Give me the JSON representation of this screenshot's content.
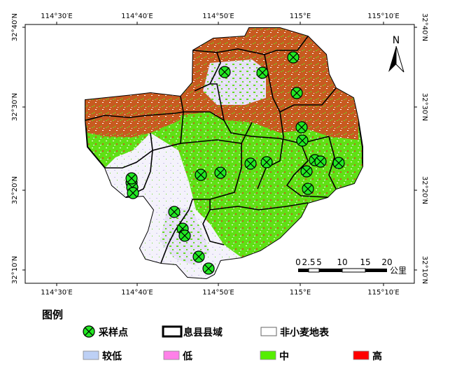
{
  "map": {
    "top_lon_labels": [
      "114°30′E",
      "114°40′E",
      "114°50′E",
      "115°E",
      "115°10′E"
    ],
    "bottom_lon_labels": [
      "114°30′E",
      "114°40′E",
      "114°50′E",
      "115°E",
      "115°10′E"
    ],
    "left_lat_labels": [
      "32°40′N",
      "32°30′N",
      "32°20′N",
      "32°10′N"
    ],
    "right_lat_labels": [
      "32°40′N",
      "32°30′N",
      "32°20′N",
      "32°10′N"
    ],
    "north_arrow_label": "N",
    "scale_bar": {
      "labels": [
        "0",
        "2.5",
        "5",
        "10",
        "15",
        "20"
      ],
      "unit": "公里"
    },
    "sample_point_count": 24
  },
  "legend": {
    "title": "图例",
    "items": [
      {
        "key": "sample",
        "label": "采样点",
        "symbol": "crossed-circle",
        "color": "#22e822"
      },
      {
        "key": "boundary",
        "label": "息县县域",
        "symbol": "boundary-box",
        "color": "#000000"
      },
      {
        "key": "nonwheat",
        "label": "非小麦地表",
        "symbol": "fill",
        "color": "#ffffff"
      },
      {
        "key": "lower",
        "label": "较低",
        "symbol": "fill",
        "color": "#bdd0f5"
      },
      {
        "key": "low",
        "label": "低",
        "symbol": "fill",
        "color": "#ff80e8"
      },
      {
        "key": "mid",
        "label": "中",
        "symbol": "fill",
        "color": "#55ee00"
      },
      {
        "key": "high",
        "label": "高",
        "symbol": "fill",
        "color": "#ff0000"
      }
    ]
  },
  "colors": {
    "high_area": "#c7501a",
    "mid_area": "#55dd11",
    "low_area": "#d8c8f0",
    "lower_area": "#e8e4f4",
    "sample_fill": "#22e822"
  }
}
